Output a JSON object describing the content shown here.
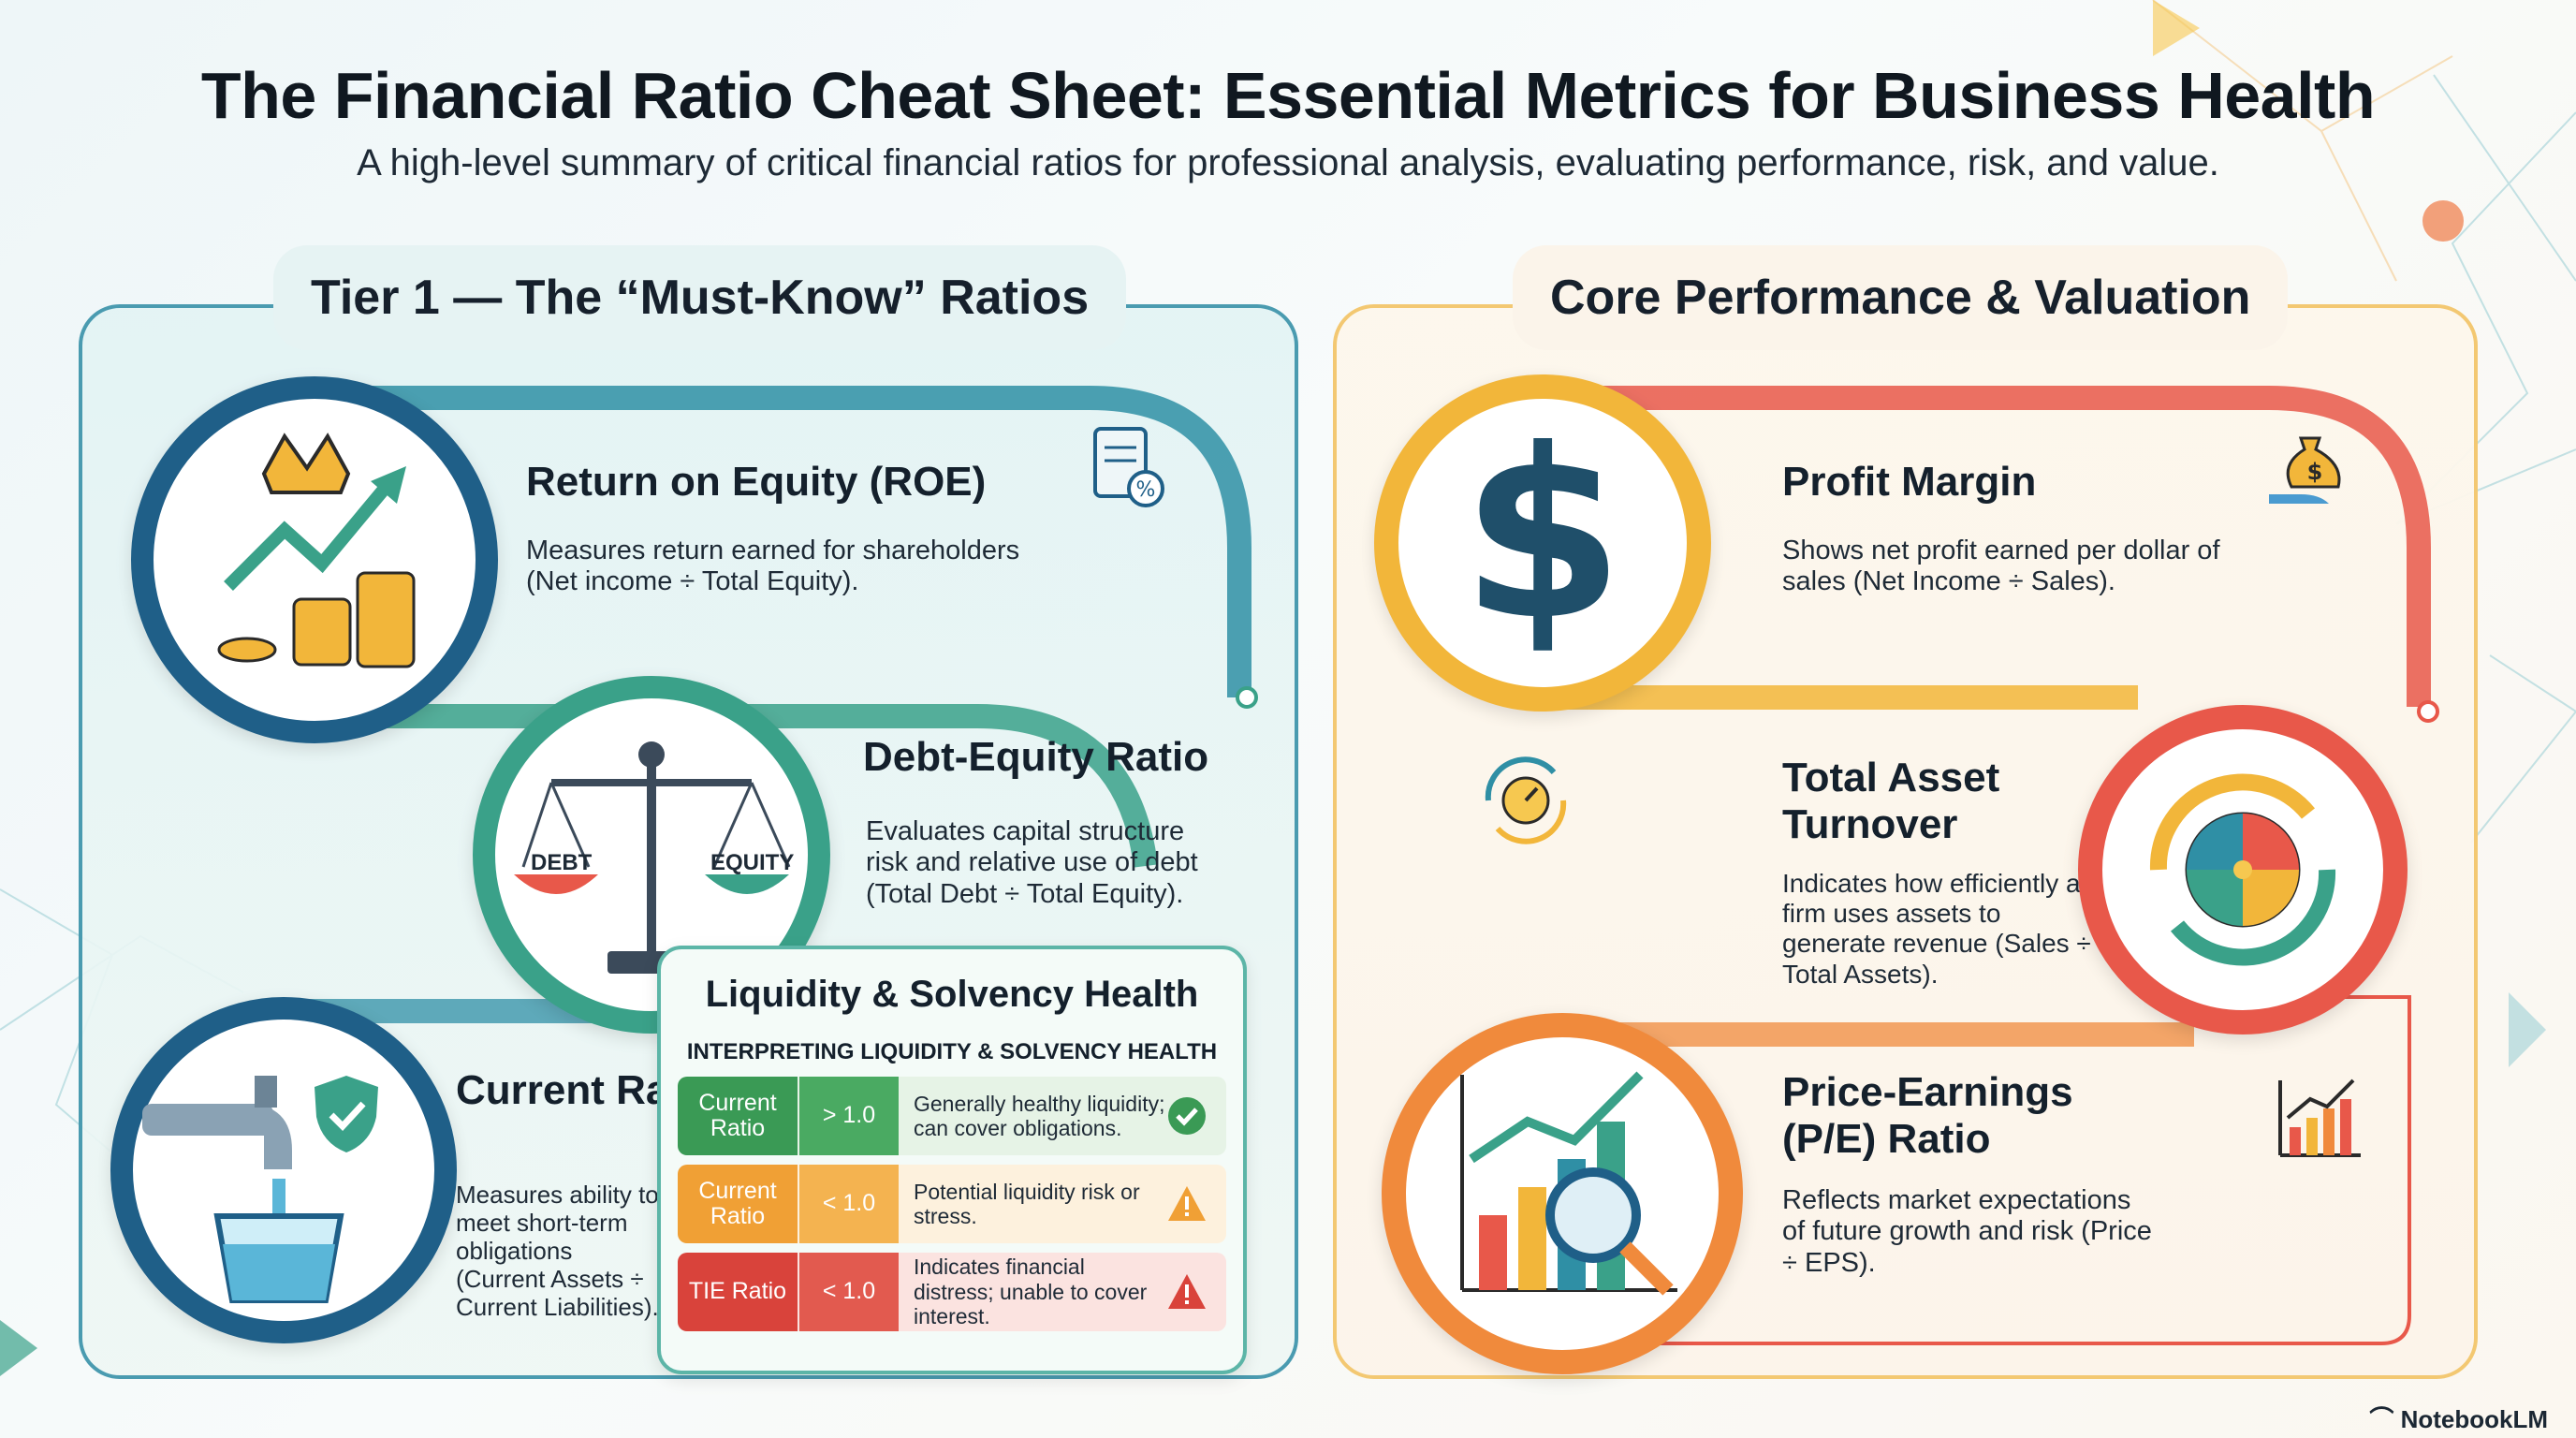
{
  "header": {
    "title": "The Financial Ratio Cheat Sheet: Essential Metrics for Business Health",
    "subtitle": "A high-level summary of critical financial ratios for professional analysis, evaluating performance, risk, and value."
  },
  "left_panel": {
    "title": "Tier 1 — The “Must-Know” Ratios",
    "items": [
      {
        "title": "Return on Equity (ROE)",
        "description": "Measures return earned for shareholders (Net income ÷ Total Equity)."
      },
      {
        "title": "Debt-Equity Ratio",
        "description": "Evaluates capital structure risk and relative use of debt (Total Debt ÷ Total Equity).",
        "scale_left": "DEBT",
        "scale_right": "EQUITY"
      },
      {
        "title": "Current Ratio",
        "description": "Measures ability to meet short-term obligations (Current Assets ÷ Current Liabilities)."
      }
    ]
  },
  "liquidity_table": {
    "title": "Liquidity & Solvency Health",
    "subtitle": "INTERPRETING LIQUIDITY & SOLVENCY HEALTH",
    "rows": [
      {
        "metric": "Current Ratio",
        "threshold": "> 1.0",
        "note": "Generally healthy liquidity; can cover obligations.",
        "status": "check-icon",
        "color": "#3a9a55",
        "bg": "#e6f3e6"
      },
      {
        "metric": "Current Ratio",
        "threshold": "< 1.0",
        "note": "Potential liquidity risk or stress.",
        "status": "warning-icon",
        "color": "#f0a035",
        "bg": "#fdf1dd"
      },
      {
        "metric": "TIE Ratio",
        "threshold": "< 1.0",
        "note": "Indicates financial distress; unable to cover interest.",
        "status": "alert-icon",
        "color": "#d9433b",
        "bg": "#fbe3e0"
      }
    ]
  },
  "right_panel": {
    "title": "Core Performance & Valuation",
    "items": [
      {
        "title": "Profit Margin",
        "description": "Shows net profit earned per dollar of sales (Net Income ÷ Sales)."
      },
      {
        "title": "Total Asset Turnover",
        "description": "Indicates how efficiently a firm uses assets to generate revenue (Sales ÷ Total Assets)."
      },
      {
        "title": "Price-Earnings (P/E) Ratio",
        "description": "Reflects market expectations of future growth and risk (Price ÷ EPS)."
      }
    ]
  },
  "icons": [
    "crown-growth-coins-icon",
    "clipboard-percent-icon",
    "balance-scale-icon",
    "faucet-bucket-icon",
    "shield-check-icon",
    "dollar-sign-icon",
    "money-bag-hand-icon",
    "gauge-cycle-icon",
    "cycle-wheel-icon",
    "bar-chart-magnifier-icon",
    "bar-chart-up-icon"
  ],
  "brand": "NotebookLM",
  "colors": {
    "teal": "#2f8fa5",
    "navy": "#1f5f88",
    "green": "#3aa189",
    "gold": "#f2b63a",
    "orange": "#f08a3c",
    "red": "#e8584a"
  }
}
